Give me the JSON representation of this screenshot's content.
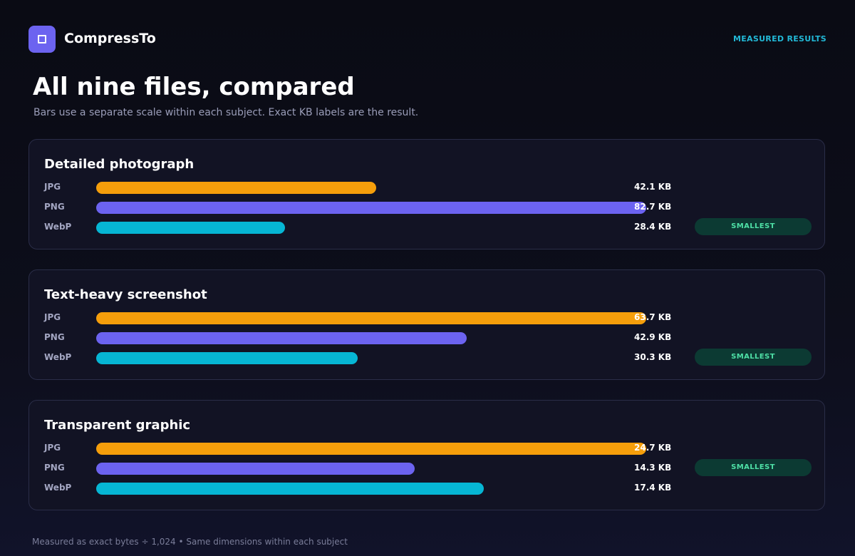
{
  "app": {
    "name": "CompressTo",
    "tagline": "MEASURED RESULTS",
    "logo_icon": "square-frame-icon"
  },
  "page": {
    "title": "All nine files, compared",
    "subtitle": "Bars use a separate scale within each subject. Exact KB labels are the result.",
    "footer": "Measured as exact bytes ÷ 1,024 • Same dimensions within each subject"
  },
  "badge_label": "SMALLEST",
  "colors": {
    "JPG": "#f59e0b",
    "PNG": "#6c63f0",
    "WebP": "#06b6d4",
    "accent": "#22b8d6",
    "badge_bg": "#0c3a33",
    "badge_text": "#4ee0a6"
  },
  "chart_data": [
    {
      "type": "bar",
      "title": "Detailed photograph",
      "categories": [
        "JPG",
        "PNG",
        "WebP"
      ],
      "values": [
        42.1,
        82.7,
        28.4
      ],
      "value_labels": [
        "42.1 KB",
        "82.7 KB",
        "28.4 KB"
      ],
      "smallest": "WebP"
    },
    {
      "type": "bar",
      "title": "Text-heavy screenshot",
      "categories": [
        "JPG",
        "PNG",
        "WebP"
      ],
      "values": [
        63.7,
        42.9,
        30.3
      ],
      "value_labels": [
        "63.7 KB",
        "42.9 KB",
        "30.3 KB"
      ],
      "smallest": "WebP"
    },
    {
      "type": "bar",
      "title": "Transparent graphic",
      "categories": [
        "JPG",
        "PNG",
        "WebP"
      ],
      "values": [
        24.7,
        14.3,
        17.4
      ],
      "value_labels": [
        "24.7 KB",
        "14.3 KB",
        "17.4 KB"
      ],
      "smallest": "PNG"
    }
  ]
}
